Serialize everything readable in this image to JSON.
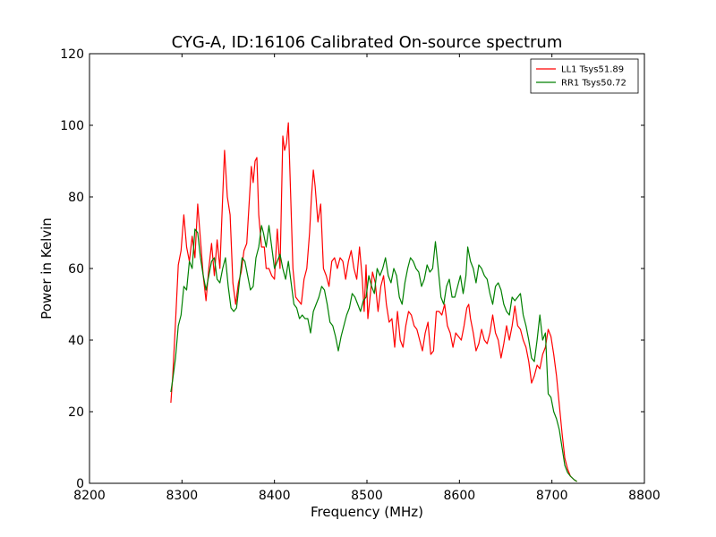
{
  "chart_data": {
    "type": "line",
    "title": "CYG-A, ID:16106 Calibrated On-source spectrum",
    "xlabel": "Frequency (MHz)",
    "ylabel": "Power in Kelvin",
    "xlim": [
      8200,
      8800
    ],
    "ylim": [
      0,
      120
    ],
    "xticks": [
      8200,
      8300,
      8400,
      8500,
      8600,
      8700,
      8800
    ],
    "yticks": [
      0,
      20,
      40,
      60,
      80,
      100,
      120
    ],
    "grid": false,
    "legend_position": "top-right",
    "series": [
      {
        "name": "LL1 Tsys51.89",
        "color": "#ff0000",
        "points": [
          [
            8288,
            22.5
          ],
          [
            8290,
            30
          ],
          [
            8293,
            45
          ],
          [
            8296,
            61
          ],
          [
            8299,
            65
          ],
          [
            8302,
            75
          ],
          [
            8305,
            66
          ],
          [
            8308,
            62
          ],
          [
            8311,
            69
          ],
          [
            8314,
            63
          ],
          [
            8317,
            78
          ],
          [
            8320,
            68
          ],
          [
            8323,
            58
          ],
          [
            8326,
            51
          ],
          [
            8329,
            60
          ],
          [
            8332,
            67
          ],
          [
            8335,
            58
          ],
          [
            8338,
            68
          ],
          [
            8341,
            60
          ],
          [
            8344,
            80
          ],
          [
            8346,
            93
          ],
          [
            8349,
            80
          ],
          [
            8352,
            75
          ],
          [
            8355,
            56
          ],
          [
            8358,
            50
          ],
          [
            8361,
            56
          ],
          [
            8364,
            59
          ],
          [
            8367,
            65
          ],
          [
            8370,
            67
          ],
          [
            8373,
            80
          ],
          [
            8375,
            88.5
          ],
          [
            8377,
            84
          ],
          [
            8379,
            90
          ],
          [
            8381,
            91
          ],
          [
            8383,
            75
          ],
          [
            8386,
            66
          ],
          [
            8389,
            66
          ],
          [
            8391,
            60
          ],
          [
            8394,
            60
          ],
          [
            8397,
            58
          ],
          [
            8400,
            57
          ],
          [
            8403,
            71
          ],
          [
            8406,
            60
          ],
          [
            8409,
            97
          ],
          [
            8411,
            93
          ],
          [
            8413,
            95
          ],
          [
            8415,
            100.7
          ],
          [
            8417,
            85
          ],
          [
            8420,
            60
          ],
          [
            8423,
            52
          ],
          [
            8426,
            51
          ],
          [
            8429,
            50
          ],
          [
            8432,
            57
          ],
          [
            8435,
            60
          ],
          [
            8438,
            70
          ],
          [
            8440,
            80
          ],
          [
            8442,
            87.5
          ],
          [
            8444,
            83
          ],
          [
            8447,
            73
          ],
          [
            8450,
            78
          ],
          [
            8453,
            60
          ],
          [
            8456,
            58
          ],
          [
            8459,
            55
          ],
          [
            8462,
            62
          ],
          [
            8465,
            63
          ],
          [
            8468,
            60
          ],
          [
            8471,
            63
          ],
          [
            8474,
            62
          ],
          [
            8477,
            57
          ],
          [
            8480,
            62
          ],
          [
            8483,
            65
          ],
          [
            8486,
            60
          ],
          [
            8489,
            57
          ],
          [
            8492,
            66
          ],
          [
            8495,
            57
          ],
          [
            8497,
            48
          ],
          [
            8499,
            61
          ],
          [
            8501,
            46
          ],
          [
            8503,
            51
          ],
          [
            8506,
            59
          ],
          [
            8509,
            56
          ],
          [
            8512,
            48
          ],
          [
            8515,
            55
          ],
          [
            8518,
            58
          ],
          [
            8521,
            50
          ],
          [
            8524,
            45
          ],
          [
            8527,
            46
          ],
          [
            8530,
            38
          ],
          [
            8533,
            48
          ],
          [
            8536,
            40
          ],
          [
            8539,
            38
          ],
          [
            8542,
            44
          ],
          [
            8545,
            48
          ],
          [
            8548,
            47
          ],
          [
            8551,
            44
          ],
          [
            8554,
            43
          ],
          [
            8557,
            40
          ],
          [
            8560,
            37
          ],
          [
            8563,
            42
          ],
          [
            8566,
            45
          ],
          [
            8569,
            36
          ],
          [
            8572,
            37
          ],
          [
            8575,
            48
          ],
          [
            8578,
            48
          ],
          [
            8581,
            47
          ],
          [
            8584,
            50
          ],
          [
            8587,
            44
          ],
          [
            8590,
            42
          ],
          [
            8593,
            38
          ],
          [
            8596,
            42
          ],
          [
            8599,
            41
          ],
          [
            8602,
            40
          ],
          [
            8605,
            44
          ],
          [
            8608,
            49
          ],
          [
            8610,
            50
          ],
          [
            8612,
            46
          ],
          [
            8615,
            42
          ],
          [
            8618,
            37
          ],
          [
            8621,
            39
          ],
          [
            8624,
            43
          ],
          [
            8627,
            40
          ],
          [
            8630,
            39
          ],
          [
            8633,
            42
          ],
          [
            8636,
            47
          ],
          [
            8639,
            42
          ],
          [
            8642,
            40
          ],
          [
            8645,
            35
          ],
          [
            8648,
            39
          ],
          [
            8651,
            44
          ],
          [
            8654,
            40
          ],
          [
            8657,
            44
          ],
          [
            8660,
            49.5
          ],
          [
            8663,
            44
          ],
          [
            8666,
            43
          ],
          [
            8669,
            40
          ],
          [
            8672,
            38
          ],
          [
            8675,
            34
          ],
          [
            8678,
            28
          ],
          [
            8681,
            30
          ],
          [
            8684,
            33
          ],
          [
            8687,
            32
          ],
          [
            8690,
            36
          ],
          [
            8693,
            38
          ],
          [
            8696,
            43
          ],
          [
            8699,
            41
          ],
          [
            8702,
            36
          ],
          [
            8705,
            30
          ],
          [
            8708,
            22
          ],
          [
            8711,
            14
          ],
          [
            8714,
            7
          ],
          [
            8717,
            4
          ],
          [
            8720,
            2
          ],
          [
            8724,
            1
          ],
          [
            8727,
            0.5
          ]
        ]
      },
      {
        "name": "RR1 Tsys50.72",
        "color": "#008000",
        "points": [
          [
            8288,
            25.5
          ],
          [
            8290,
            29
          ],
          [
            8293,
            35
          ],
          [
            8296,
            44
          ],
          [
            8299,
            47
          ],
          [
            8302,
            55
          ],
          [
            8305,
            54
          ],
          [
            8308,
            62
          ],
          [
            8311,
            60
          ],
          [
            8314,
            71
          ],
          [
            8317,
            70
          ],
          [
            8320,
            63
          ],
          [
            8323,
            58
          ],
          [
            8326,
            54
          ],
          [
            8329,
            58
          ],
          [
            8332,
            62
          ],
          [
            8335,
            63
          ],
          [
            8338,
            57
          ],
          [
            8341,
            56
          ],
          [
            8344,
            60
          ],
          [
            8347,
            63
          ],
          [
            8350,
            55
          ],
          [
            8353,
            49
          ],
          [
            8356,
            48
          ],
          [
            8359,
            49
          ],
          [
            8362,
            56
          ],
          [
            8365,
            63
          ],
          [
            8368,
            62
          ],
          [
            8371,
            58
          ],
          [
            8374,
            54
          ],
          [
            8377,
            55
          ],
          [
            8380,
            63
          ],
          [
            8383,
            66
          ],
          [
            8386,
            72
          ],
          [
            8388,
            70
          ],
          [
            8391,
            66
          ],
          [
            8394,
            72
          ],
          [
            8397,
            66
          ],
          [
            8400,
            60
          ],
          [
            8403,
            62
          ],
          [
            8406,
            64
          ],
          [
            8409,
            60
          ],
          [
            8412,
            57
          ],
          [
            8415,
            62
          ],
          [
            8418,
            56
          ],
          [
            8421,
            50
          ],
          [
            8424,
            49
          ],
          [
            8427,
            46
          ],
          [
            8430,
            47
          ],
          [
            8433,
            46
          ],
          [
            8436,
            46
          ],
          [
            8439,
            42
          ],
          [
            8442,
            48
          ],
          [
            8445,
            50
          ],
          [
            8448,
            52
          ],
          [
            8451,
            55
          ],
          [
            8454,
            54
          ],
          [
            8457,
            50
          ],
          [
            8460,
            45
          ],
          [
            8463,
            44
          ],
          [
            8466,
            41
          ],
          [
            8469,
            37
          ],
          [
            8472,
            41
          ],
          [
            8475,
            44
          ],
          [
            8478,
            47
          ],
          [
            8481,
            49
          ],
          [
            8484,
            53
          ],
          [
            8487,
            52
          ],
          [
            8490,
            50
          ],
          [
            8493,
            48
          ],
          [
            8496,
            51
          ],
          [
            8499,
            52
          ],
          [
            8502,
            58
          ],
          [
            8505,
            55
          ],
          [
            8508,
            53
          ],
          [
            8511,
            60
          ],
          [
            8514,
            58
          ],
          [
            8517,
            60
          ],
          [
            8520,
            63
          ],
          [
            8523,
            58
          ],
          [
            8526,
            56
          ],
          [
            8529,
            60
          ],
          [
            8532,
            58
          ],
          [
            8535,
            52
          ],
          [
            8538,
            50
          ],
          [
            8541,
            56
          ],
          [
            8544,
            60
          ],
          [
            8547,
            63
          ],
          [
            8550,
            62
          ],
          [
            8553,
            60
          ],
          [
            8556,
            59
          ],
          [
            8559,
            55
          ],
          [
            8562,
            57
          ],
          [
            8565,
            61
          ],
          [
            8568,
            59
          ],
          [
            8571,
            60
          ],
          [
            8574,
            67.5
          ],
          [
            8577,
            60
          ],
          [
            8580,
            52
          ],
          [
            8583,
            50
          ],
          [
            8586,
            55
          ],
          [
            8589,
            57
          ],
          [
            8592,
            52
          ],
          [
            8595,
            52
          ],
          [
            8598,
            55
          ],
          [
            8601,
            58
          ],
          [
            8604,
            53
          ],
          [
            8607,
            58
          ],
          [
            8609,
            66
          ],
          [
            8612,
            62
          ],
          [
            8615,
            60
          ],
          [
            8618,
            56
          ],
          [
            8621,
            61
          ],
          [
            8624,
            60
          ],
          [
            8627,
            58
          ],
          [
            8630,
            57
          ],
          [
            8633,
            53
          ],
          [
            8636,
            50
          ],
          [
            8639,
            55
          ],
          [
            8642,
            56
          ],
          [
            8645,
            54
          ],
          [
            8648,
            50
          ],
          [
            8651,
            48
          ],
          [
            8654,
            47
          ],
          [
            8657,
            52
          ],
          [
            8660,
            51
          ],
          [
            8663,
            52
          ],
          [
            8666,
            53
          ],
          [
            8669,
            47
          ],
          [
            8672,
            44
          ],
          [
            8675,
            40
          ],
          [
            8678,
            35
          ],
          [
            8681,
            34
          ],
          [
            8684,
            40
          ],
          [
            8687,
            47
          ],
          [
            8690,
            40
          ],
          [
            8693,
            42
          ],
          [
            8696,
            25
          ],
          [
            8699,
            24
          ],
          [
            8702,
            20
          ],
          [
            8705,
            18
          ],
          [
            8708,
            15
          ],
          [
            8711,
            10
          ],
          [
            8714,
            5
          ],
          [
            8717,
            3
          ],
          [
            8720,
            2
          ],
          [
            8724,
            1
          ],
          [
            8727,
            0.5
          ]
        ]
      }
    ]
  }
}
